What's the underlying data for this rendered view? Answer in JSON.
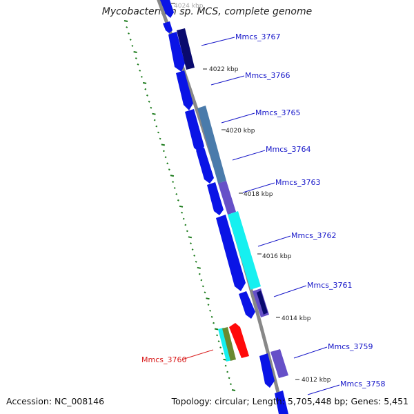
{
  "title": "Mycobacterium sp. MCS, complete genome",
  "accession": "Accession: NC_008146",
  "summary": "Topology: circular; Length: 5,705,448 bp; Genes: 5,451",
  "scale_marks": [
    "4024 kbp",
    "4022 kbp",
    "4020 kbp",
    "4018 kbp",
    "4016 kbp",
    "4014 kbp",
    "4012 kbp"
  ],
  "gene_labels_forward": [
    "Mmcs_3767",
    "Mmcs_3766",
    "Mmcs_3765",
    "Mmcs_3764",
    "Mmcs_3763",
    "Mmcs_3762",
    "Mmcs_3761",
    "Mmcs_3759",
    "Mmcs_3758"
  ],
  "gene_labels_reverse": [
    "Mmcs_3760"
  ],
  "colors": {
    "backbone": "#888888",
    "gene_blue": "#0a14e6",
    "gene_navy": "#0a0a6e",
    "gene_steel": "#4a7bab",
    "gene_purple": "#6650c8",
    "gene_cyan": "#16f0f0",
    "gene_red": "#ff0a0a",
    "gene_olive": "#6a8a30",
    "label_blue": "#1414c8",
    "label_red": "#d81818",
    "tick_green": "#1a7a1a"
  }
}
